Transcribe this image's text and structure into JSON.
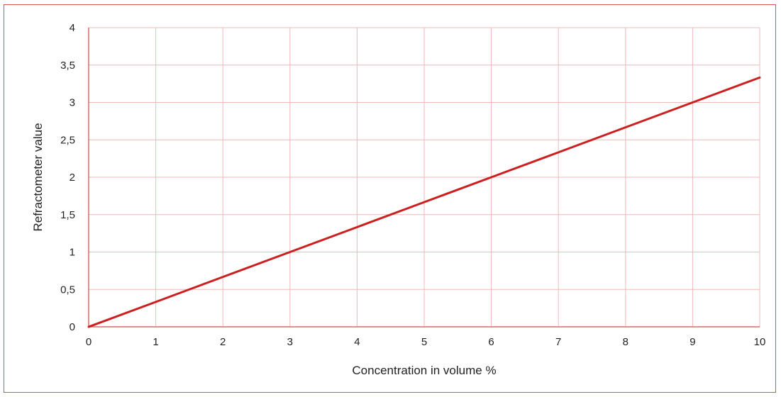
{
  "chart_data": {
    "type": "line",
    "title": "",
    "xlabel": "Concentration in volume %",
    "ylabel": "Refractometer value",
    "xlim": [
      0,
      10
    ],
    "ylim": [
      0,
      4
    ],
    "x_ticks": [
      0,
      1,
      2,
      3,
      4,
      5,
      6,
      7,
      8,
      9,
      10
    ],
    "x_tick_labels": [
      "0",
      "1",
      "2",
      "3",
      "4",
      "5",
      "6",
      "7",
      "8",
      "9",
      "10"
    ],
    "y_ticks": [
      0,
      0.5,
      1,
      1.5,
      2,
      2.5,
      3,
      3.5,
      4
    ],
    "y_tick_labels": [
      "0",
      "0,5",
      "1",
      "1,5",
      "2",
      "2,5",
      "3",
      "3,5",
      "4"
    ],
    "grid": true,
    "legend": "none",
    "series": [
      {
        "x": [
          0,
          1,
          2,
          3,
          4,
          5,
          6,
          7,
          8,
          9,
          10
        ],
        "y": [
          0,
          0.333,
          0.667,
          1,
          1.333,
          1.667,
          2,
          2.333,
          2.667,
          3,
          3.333
        ],
        "color": "#cc1f1f"
      }
    ],
    "colors": {
      "frame": "#d9534f",
      "grid": "#f2b8b8",
      "axis": "#e06666",
      "line": "#cc1f1f"
    }
  }
}
